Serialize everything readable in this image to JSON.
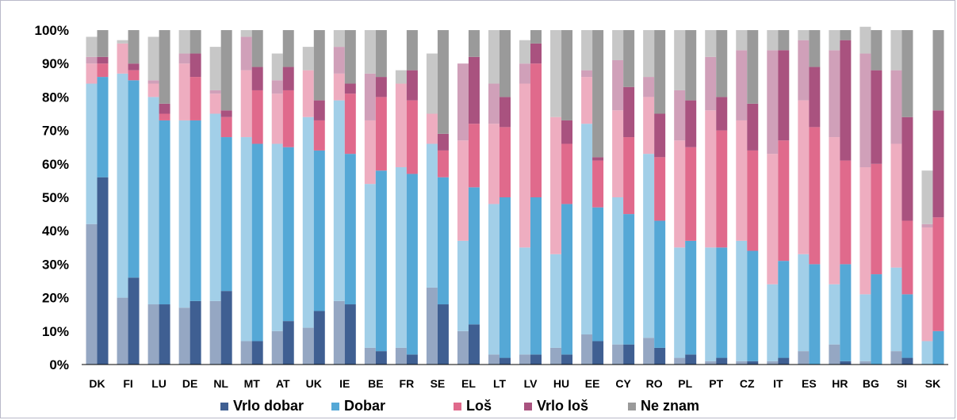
{
  "chart_data": {
    "type": "bar",
    "stacked": true,
    "categories": [
      "DK",
      "FI",
      "LU",
      "DE",
      "NL",
      "MT",
      "AT",
      "UK",
      "IE",
      "BE",
      "FR",
      "SE",
      "EL",
      "LT",
      "LV",
      "HU",
      "EE",
      "CY",
      "RO",
      "PL",
      "PT",
      "CZ",
      "IT",
      "ES",
      "HR",
      "BG",
      "SI",
      "SK"
    ],
    "ylim": [
      0,
      100
    ],
    "yticks": [
      "0%",
      "10%",
      "20%",
      "30%",
      "40%",
      "50%",
      "60%",
      "70%",
      "80%",
      "90%",
      "100%"
    ],
    "grid": false,
    "legend_position": "bottom",
    "series": [
      {
        "name": "Vrlo dobar",
        "color": "#3f5f92",
        "values_a": [
          42,
          20,
          18,
          17,
          19,
          7,
          10,
          11,
          19,
          5,
          5,
          23,
          10,
          3,
          3,
          5,
          9,
          6,
          8,
          2,
          1,
          1,
          1,
          4,
          6,
          1,
          4,
          0
        ],
        "values_b": [
          56,
          26,
          18,
          19,
          22,
          7,
          13,
          16,
          18,
          4,
          3,
          18,
          12,
          2,
          3,
          3,
          7,
          6,
          5,
          3,
          2,
          1,
          2,
          0,
          1,
          0,
          2,
          0
        ]
      },
      {
        "name": "Dobar",
        "color": "#55a8d6",
        "values_a": [
          42,
          67,
          62,
          56,
          56,
          61,
          56,
          63,
          60,
          49,
          54,
          43,
          27,
          45,
          32,
          28,
          63,
          44,
          55,
          33,
          34,
          36,
          23,
          29,
          18,
          20,
          25,
          7
        ],
        "values_b": [
          30,
          59,
          55,
          54,
          46,
          59,
          52,
          48,
          45,
          54,
          54,
          38,
          41,
          48,
          47,
          45,
          40,
          39,
          38,
          34,
          33,
          33,
          29,
          30,
          29,
          27,
          19,
          10
        ]
      },
      {
        "name": "Loš",
        "color": "#e06a8c",
        "values_a": [
          6,
          9,
          4,
          17,
          6,
          20,
          15,
          14,
          8,
          19,
          25,
          9,
          30,
          24,
          49,
          41,
          14,
          26,
          17,
          32,
          41,
          36,
          39,
          46,
          44,
          38,
          37,
          34
        ],
        "values_b": [
          4,
          3,
          2,
          13,
          6,
          16,
          17,
          9,
          18,
          22,
          22,
          8,
          19,
          21,
          40,
          18,
          14,
          23,
          19,
          28,
          35,
          30,
          36,
          41,
          31,
          33,
          22,
          34
        ]
      },
      {
        "name": "Vrlo loš",
        "color": "#a9527f",
        "values_a": [
          2,
          0,
          1,
          3,
          1,
          10,
          4,
          0,
          8,
          14,
          0,
          0,
          23,
          12,
          6,
          0,
          2,
          15,
          6,
          15,
          16,
          21,
          31,
          18,
          26,
          34,
          22,
          1
        ],
        "values_b": [
          2,
          2,
          3,
          7,
          2,
          7,
          7,
          6,
          3,
          6,
          9,
          5,
          20,
          9,
          6,
          7,
          1,
          15,
          13,
          14,
          10,
          14,
          27,
          18,
          36,
          28,
          31,
          32
        ]
      },
      {
        "name": "Ne znam",
        "color": "#9a9a9a",
        "values_a": [
          6,
          1,
          13,
          7,
          13,
          2,
          8,
          7,
          5,
          13,
          4,
          18,
          0,
          16,
          7,
          26,
          12,
          9,
          14,
          18,
          8,
          6,
          6,
          3,
          6,
          8,
          12,
          16
        ],
        "values_b": [
          8,
          10,
          22,
          7,
          24,
          11,
          11,
          21,
          16,
          14,
          12,
          31,
          8,
          20,
          4,
          27,
          38,
          17,
          25,
          21,
          20,
          22,
          6,
          11,
          3,
          12,
          26,
          24
        ]
      }
    ]
  },
  "legend": {
    "items": [
      {
        "label": "Vrlo dobar",
        "color": "#3f5f92"
      },
      {
        "label": "Dobar",
        "color": "#55a8d6"
      },
      {
        "label": "Loš",
        "color": "#e06a8c"
      },
      {
        "label": "Vrlo loš",
        "color": "#a9527f"
      },
      {
        "label": "Ne znam",
        "color": "#9a9a9a"
      }
    ]
  }
}
